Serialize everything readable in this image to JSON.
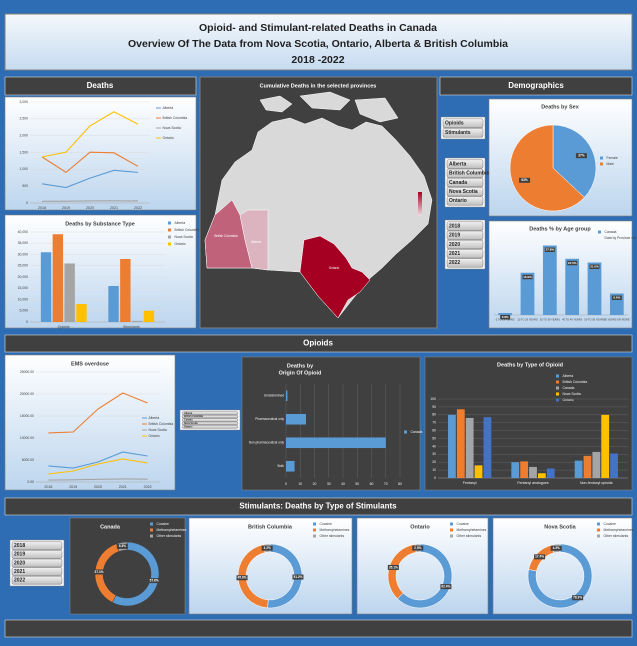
{
  "header": {
    "title_lines": [
      "Opioid- and Stimulant-related Deaths in Canada",
      "Overview Of The Data from Nova Scotia, Ontario, Alberta & British Columbia",
      "2018 -2022"
    ]
  },
  "sections": {
    "deaths": "Deaths",
    "demographics": "Demographics",
    "opioids": "Opioids",
    "stimulants": "Stimulants: Deaths by Type of Stimulants"
  },
  "map": {
    "title": "Cumulative Deaths in the selected provinces",
    "labels": [
      "British Columbia",
      "Alberta",
      "Ontario"
    ]
  },
  "slicers": {
    "substance": [
      "Opioids",
      "Stimulants"
    ],
    "provinces": [
      "Alberta",
      "British Columbia",
      "Canada",
      "Nova Scotia",
      "Ontario"
    ],
    "years": [
      "2018",
      "2019",
      "2020",
      "2021",
      "2022"
    ],
    "ems_provinces": [
      "Alberta",
      "British Columbia",
      "Canada",
      "Nova Scotia",
      "Ontario"
    ],
    "stim_years": [
      "2018",
      "2019",
      "2020",
      "2021",
      "2022"
    ]
  },
  "chart_data": [
    {
      "type": "line",
      "categories": [
        "2018",
        "2019",
        "2020",
        "2021",
        "2022"
      ],
      "series": [
        {
          "name": "Alberta",
          "color": "#5b9bd5",
          "values": [
            570,
            460,
            740,
            970,
            910
          ]
        },
        {
          "name": "British Columbia",
          "color": "#ed7d31",
          "values": [
            1370,
            910,
            1510,
            1490,
            1090
          ]
        },
        {
          "name": "Nova Scotia",
          "color": "#a5a5a5",
          "values": [
            50,
            55,
            60,
            65,
            60
          ]
        },
        {
          "name": "Ontario",
          "color": "#ffc000",
          "values": [
            1370,
            1510,
            2290,
            2710,
            2340
          ]
        }
      ],
      "ylim": [
        0,
        3000
      ],
      "yticks": [
        0,
        500,
        {
          "value": 1000,
          "label": "1,000"
        },
        {
          "value": 1500,
          "label": "1,500"
        },
        {
          "value": 2000,
          "label": "2,000"
        },
        {
          "value": 2500,
          "label": "2,500"
        },
        {
          "value": 3000,
          "label": "3,000"
        }
      ],
      "grid": true,
      "legend": "right"
    },
    {
      "type": "bar",
      "title": "Deaths by Substance Type",
      "categories": [
        "Opioids",
        "Stimulants"
      ],
      "series": [
        {
          "name": "Alberta",
          "color": "#5b9bd5",
          "values": [
            31000,
            16000
          ]
        },
        {
          "name": "British Columbia",
          "color": "#ed7d31",
          "values": [
            39000,
            28000
          ]
        },
        {
          "name": "Nova Scotia",
          "color": "#a5a5a5",
          "values": [
            26000,
            500
          ]
        },
        {
          "name": "Ontario",
          "color": "#ffc000",
          "values": [
            8000,
            5000
          ]
        }
      ],
      "ylim": [
        0,
        40000
      ],
      "yticks": [
        0,
        {
          "value": 5000,
          "label": "5,000"
        },
        {
          "value": 10000,
          "label": "10,000"
        },
        {
          "value": 15000,
          "label": "15,000"
        },
        {
          "value": 20000,
          "label": "20,000"
        },
        {
          "value": 25000,
          "label": "25,000"
        },
        {
          "value": 30000,
          "label": "30,000"
        },
        {
          "value": 35000,
          "label": "35,000"
        },
        {
          "value": 40000,
          "label": "40,000"
        }
      ],
      "grid": true,
      "legend": "right"
    },
    {
      "type": "pie",
      "title": "Deaths by Sex",
      "categories": [
        "Female",
        "Male"
      ],
      "values": [
        37,
        63
      ],
      "value_labels": [
        "37%",
        "63%"
      ],
      "colors": [
        "#5b9bd5",
        "#ed7d31"
      ],
      "legend": "right"
    },
    {
      "type": "bar",
      "title": "Deaths % by Age group",
      "categories": [
        "0 TO 19 YEARS",
        "20 TO 29 YEARS",
        "30 TO 39 YEARS",
        "40 TO 49 YEARS",
        "50 TO 59 YEARS",
        "60 YEARS OR MORE"
      ],
      "series": [
        {
          "name": "Canada",
          "color": "#5b9bd5",
          "values": [
            0.8,
            16.9,
            27.8,
            22.5,
            21.0,
            8.6
          ],
          "value_labels": [
            "0.8%",
            "16.9%",
            "27.8%",
            "22.5%",
            "21.0%",
            "8.6%"
          ]
        }
      ],
      "note": "Data by Province n/a",
      "ylim": [
        0,
        30
      ],
      "grid": false,
      "legend": "right"
    },
    {
      "type": "line",
      "title": "EMS overdose",
      "categories": [
        "2018",
        "2019",
        "2020",
        "2021",
        "2022"
      ],
      "series": [
        {
          "name": "Alberta",
          "color": "#5b9bd5",
          "values": [
            3640,
            3180,
            4550,
            6820,
            5910
          ]
        },
        {
          "name": "British Columbia",
          "color": "#ed7d31",
          "values": [
            11140,
            11360,
            16590,
            20230,
            17950
          ]
        },
        {
          "name": "Nova Scotia",
          "color": "#a5a5a5",
          "values": [
            450,
            500,
            600,
            700,
            650
          ]
        },
        {
          "name": "Ontario",
          "color": "#ffc000",
          "values": [
            1820,
            2500,
            4090,
            5230,
            4320
          ]
        }
      ],
      "ylim": [
        0,
        25000
      ],
      "yticks": [
        {
          "value": 0,
          "label": "0.00"
        },
        {
          "value": 5000,
          "label": "5000.00"
        },
        {
          "value": 10000,
          "label": "10000.00"
        },
        {
          "value": 15000,
          "label": "15000.00"
        },
        {
          "value": 20000,
          "label": "20000.00"
        },
        {
          "value": 25000,
          "label": "25000.00"
        }
      ],
      "grid": true,
      "legend": "right"
    },
    {
      "type": "barh",
      "title": [
        "Deaths by",
        "Origin Of Opioid"
      ],
      "categories": [
        "Undetermined",
        "Pharmaceutical only",
        "Non-pharmaceutical only",
        "Both"
      ],
      "series": [
        {
          "name": "Canada",
          "color": "#5b9bd5",
          "values": [
            1,
            14,
            70,
            6
          ]
        }
      ],
      "xlim": [
        0,
        80
      ],
      "xticks": [
        0,
        10,
        20,
        30,
        40,
        50,
        60,
        70,
        80
      ],
      "grid": true,
      "legend": "right"
    },
    {
      "type": "bar",
      "title": "Deaths by Type of Opioid",
      "categories": [
        "Fentanyl",
        "Fentanyl analogues",
        "Non-fentanyl opioids"
      ],
      "series": [
        {
          "name": "Alberta",
          "color": "#5b9bd5",
          "values": [
            80,
            20,
            22
          ]
        },
        {
          "name": "British Columbia",
          "color": "#ed7d31",
          "values": [
            87,
            21,
            28
          ]
        },
        {
          "name": "Canada",
          "color": "#a5a5a5",
          "values": [
            76,
            14,
            33
          ]
        },
        {
          "name": "Nova Scotia",
          "color": "#ffc000",
          "values": [
            16,
            6,
            80
          ]
        },
        {
          "name": "Ontario",
          "color": "#4472c4",
          "values": [
            77,
            12,
            31
          ]
        }
      ],
      "ylim": [
        0,
        100
      ],
      "yticks": [
        0,
        10,
        20,
        30,
        40,
        50,
        60,
        70,
        80,
        90,
        100
      ],
      "grid": true,
      "legend": "right"
    },
    {
      "type": "donut",
      "title": "Canada",
      "categories": [
        "Cocaine",
        "Methamphetamines",
        "Other stimulants"
      ],
      "values": [
        57.6,
        37.1,
        5.3
      ],
      "value_labels": [
        "57.6%",
        "37.1%",
        "5.3%"
      ],
      "colors": [
        "#5b9bd5",
        "#ed7d31",
        "#a5a5a5"
      ],
      "legend": "right"
    },
    {
      "type": "donut",
      "title": "British Columbia",
      "categories": [
        "Cocaine",
        "Methamphetamines",
        "Other stimulants"
      ],
      "values": [
        51.2,
        45.6,
        3.2
      ],
      "value_labels": [
        "51.2%",
        "45.6%",
        "3.2%"
      ],
      "colors": [
        "#5b9bd5",
        "#ed7d31",
        "#a5a5a5"
      ],
      "legend": "right"
    },
    {
      "type": "donut",
      "title": "Ontario",
      "categories": [
        "Cocaine",
        "Methamphetamines",
        "Other stimulants"
      ],
      "values": [
        62.4,
        35.1,
        2.5
      ],
      "value_labels": [
        "62.4%",
        "35.1%",
        "2.5%"
      ],
      "colors": [
        "#5b9bd5",
        "#ed7d31",
        "#a5a5a5"
      ],
      "legend": "right"
    },
    {
      "type": "donut",
      "title": "Nova Scotia",
      "categories": [
        "Cocaine",
        "Methamphetamines",
        "Other stimulants"
      ],
      "values": [
        78.3,
        17.4,
        4.3
      ],
      "value_labels": [
        "78.3%",
        "17.4%",
        "4.3%"
      ],
      "colors": [
        "#5b9bd5",
        "#ed7d31",
        "#a5a5a5"
      ],
      "legend": "right"
    }
  ]
}
